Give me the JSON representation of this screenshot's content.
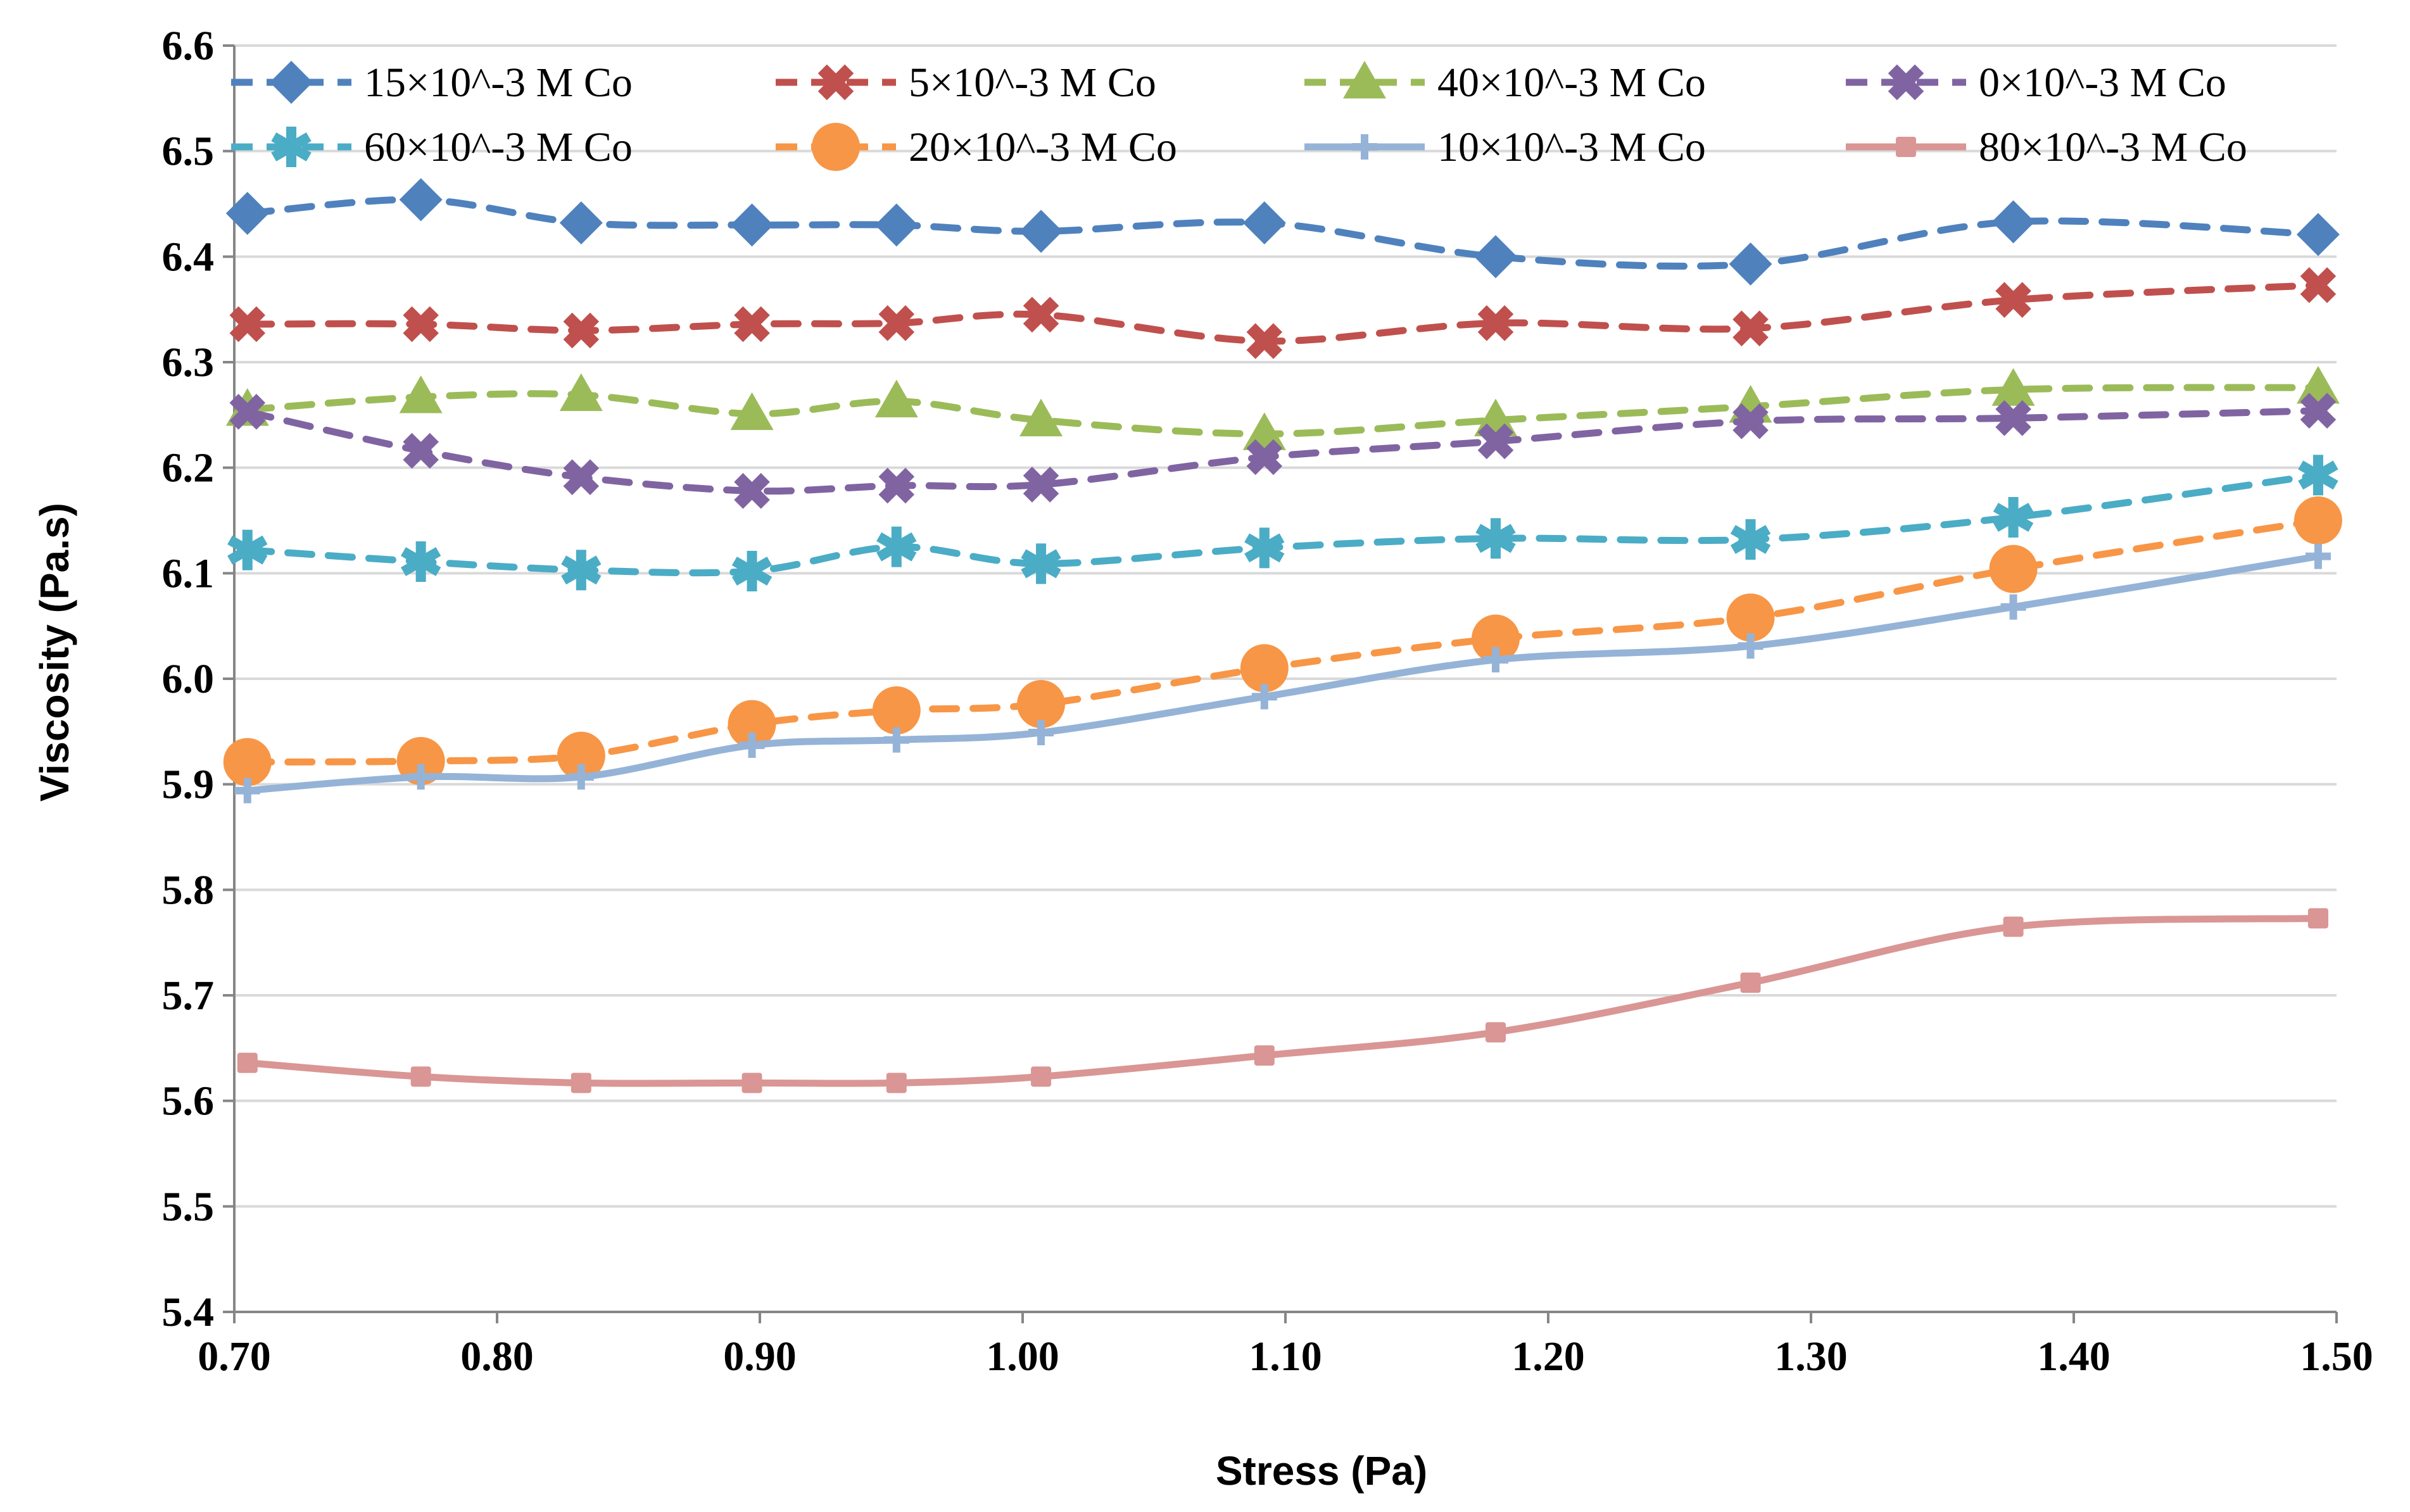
{
  "chart_data": {
    "type": "line",
    "title": "",
    "xlabel": "Stress (Pa)",
    "ylabel": "Viscosity (Pa.s)",
    "xlim": [
      0.7,
      1.5
    ],
    "ylim": [
      5.4,
      6.6
    ],
    "xticks": [
      "0.70",
      "0.80",
      "0.90",
      "1.00",
      "1.10",
      "1.20",
      "1.30",
      "1.40",
      "1.50"
    ],
    "yticks": [
      "5.4",
      "5.5",
      "5.6",
      "5.7",
      "5.8",
      "5.9",
      "6.0",
      "6.1",
      "6.2",
      "6.3",
      "6.4",
      "6.5",
      "6.6"
    ],
    "grid": "horizontal",
    "legend_position": "top",
    "x": [
      0.705,
      0.771,
      0.832,
      0.897,
      0.952,
      1.007,
      1.092,
      1.18,
      1.277,
      1.377,
      1.493
    ],
    "series": [
      {
        "name": "15×10^-3 M Co",
        "color": "#4F81BD",
        "dash": "dashed",
        "marker": "diamond",
        "values": [
          6.441,
          6.454,
          6.432,
          6.43,
          6.43,
          6.424,
          6.432,
          6.4,
          6.393,
          6.433,
          6.421
        ]
      },
      {
        "name": "5×10^-3 M Co",
        "color": "#C0504D",
        "dash": "dashed",
        "marker": "x",
        "values": [
          6.336,
          6.336,
          6.33,
          6.336,
          6.337,
          6.345,
          6.32,
          6.337,
          6.332,
          6.359,
          6.373
        ]
      },
      {
        "name": "40×10^-3 M Co",
        "color": "#9BBB59",
        "dash": "dashed",
        "marker": "triangle",
        "values": [
          6.255,
          6.267,
          6.269,
          6.251,
          6.263,
          6.245,
          6.232,
          6.245,
          6.258,
          6.274,
          6.276
        ]
      },
      {
        "name": "0×10^-3 M Co",
        "color": "#8064A2",
        "dash": "dashed",
        "marker": "x",
        "values": [
          6.253,
          6.216,
          6.191,
          6.178,
          6.183,
          6.184,
          6.21,
          6.225,
          6.244,
          6.247,
          6.254
        ]
      },
      {
        "name": "60×10^-3 M Co",
        "color": "#4BACC6",
        "dash": "dashed",
        "marker": "star",
        "values": [
          6.122,
          6.111,
          6.103,
          6.102,
          6.125,
          6.109,
          6.124,
          6.133,
          6.132,
          6.153,
          6.193
        ]
      },
      {
        "name": "20×10^-3 M Co",
        "color": "#F79646",
        "dash": "dashed",
        "marker": "circle",
        "values": [
          5.921,
          5.922,
          5.927,
          5.957,
          5.97,
          5.976,
          6.01,
          6.038,
          6.058,
          6.104,
          6.15
        ]
      },
      {
        "name": "10×10^-3 M Co",
        "color": "#95B3D7",
        "dash": "solid",
        "marker": "plus",
        "values": [
          5.894,
          5.907,
          5.907,
          5.937,
          5.942,
          5.949,
          5.983,
          6.018,
          6.031,
          6.068,
          6.116
        ]
      },
      {
        "name": "80×10^-3 M Co",
        "color": "#D99694",
        "dash": "solid",
        "marker": "square",
        "values": [
          5.636,
          5.623,
          5.617,
          5.617,
          5.617,
          5.623,
          5.643,
          5.665,
          5.712,
          5.765,
          5.773
        ]
      }
    ]
  }
}
